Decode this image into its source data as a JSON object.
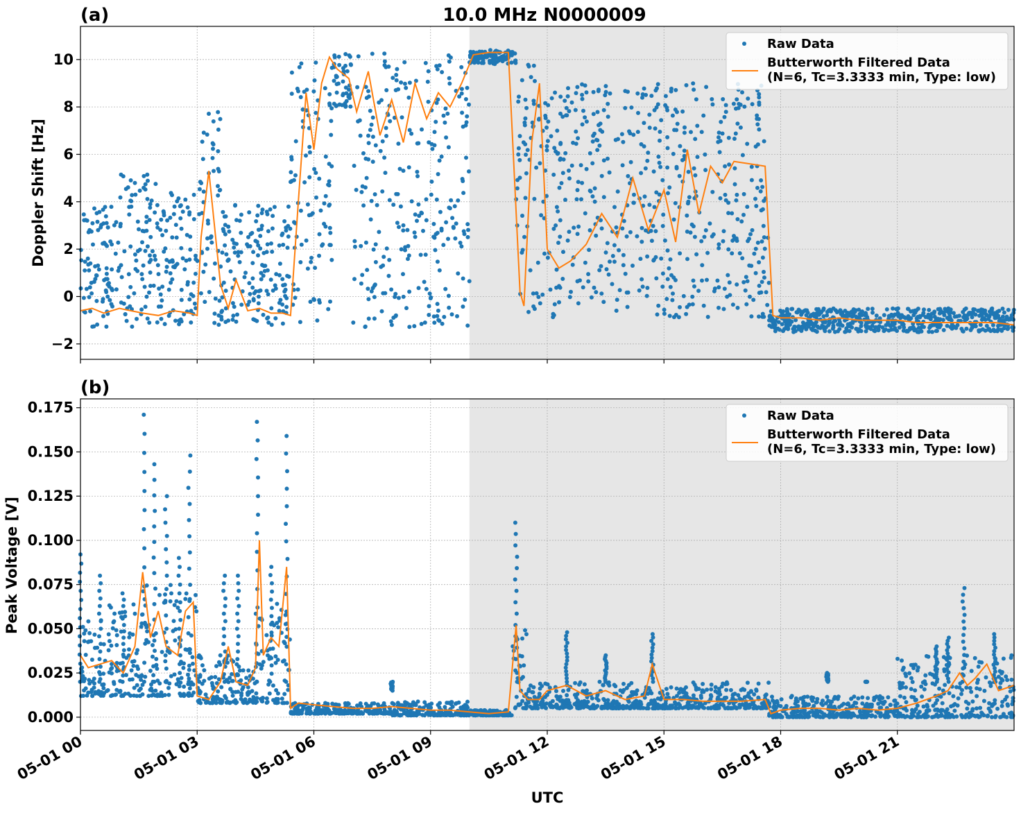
{
  "title": "10.0 MHz N0000009",
  "xlabel": "UTC",
  "x_ticks": [
    "05-01 00",
    "05-01 03",
    "05-01 06",
    "05-01 09",
    "05-01 12",
    "05-01 15",
    "05-01 18",
    "05-01 21"
  ],
  "night_shade": {
    "start_hour": 10.0,
    "end_hour": 24.0,
    "color": "#e6e6e6"
  },
  "colors": {
    "raw": "#1f77b4",
    "filtered": "#ff7f0e",
    "grid": "#b0b0b0"
  },
  "legend": {
    "raw_label": "Raw Data",
    "filt_line1": "Butterworth Filtered Data",
    "filt_line2": "(N=6, Tc=3.3333 min, Type: low)"
  },
  "chart_data": [
    {
      "type": "scatter",
      "panel_label": "(a)",
      "ylabel": "Doppler Shift [Hz]",
      "xlim_hours": [
        0,
        24
      ],
      "ylim": [
        -2.65,
        11.4
      ],
      "yticks": [
        -2,
        0,
        2,
        4,
        6,
        8,
        10
      ],
      "ytick_labels": [
        "−2",
        "0",
        "2",
        "4",
        "6",
        "8",
        "10"
      ],
      "legend_position": "top-right",
      "grid": true,
      "series": [
        {
          "name": "Raw Data",
          "kind": "scatter-envelope",
          "segments": [
            {
              "t": [
                0.0,
                1.0
              ],
              "lo": -1.3,
              "hi": 3.8
            },
            {
              "t": [
                1.0,
                2.0
              ],
              "lo": -1.3,
              "hi": 5.2
            },
            {
              "t": [
                2.0,
                3.0
              ],
              "lo": -1.2,
              "hi": 4.5
            },
            {
              "t": [
                3.0,
                3.6
              ],
              "lo": -1.3,
              "hi": 7.8
            },
            {
              "t": [
                3.6,
                5.4
              ],
              "lo": -1.2,
              "hi": 4.0
            },
            {
              "t": [
                5.4,
                6.5
              ],
              "lo": -1.1,
              "hi": 10.3
            },
            {
              "t": [
                6.5,
                7.0
              ],
              "lo": 8.0,
              "hi": 10.3
            },
            {
              "t": [
                7.0,
                10.0
              ],
              "lo": -1.3,
              "hi": 10.3
            },
            {
              "t": [
                10.0,
                11.2
              ],
              "lo": 9.8,
              "hi": 10.4
            },
            {
              "t": [
                11.2,
                11.8
              ],
              "lo": -0.8,
              "hi": 9.8
            },
            {
              "t": [
                11.8,
                17.7
              ],
              "lo": -0.9,
              "hi": 9.0
            },
            {
              "t": [
                17.7,
                24.0
              ],
              "lo": -1.5,
              "hi": -0.5
            }
          ]
        },
        {
          "name": "Butterworth Filtered Data (N=6, Tc=3.3333 min, Type: low)",
          "kind": "line",
          "x": [
            0,
            0.3,
            0.6,
            1.0,
            1.3,
            1.6,
            2.0,
            2.4,
            2.8,
            3.0,
            3.1,
            3.3,
            3.6,
            3.8,
            4.0,
            4.3,
            4.6,
            4.9,
            5.2,
            5.4,
            5.6,
            5.8,
            6.0,
            6.2,
            6.4,
            6.6,
            6.9,
            7.1,
            7.4,
            7.7,
            8.0,
            8.3,
            8.6,
            8.9,
            9.2,
            9.5,
            9.8,
            10.1,
            10.5,
            11.0,
            11.3,
            11.4,
            11.6,
            11.8,
            12.0,
            12.3,
            12.6,
            13.0,
            13.4,
            13.8,
            14.2,
            14.6,
            15.0,
            15.3,
            15.6,
            15.9,
            16.2,
            16.5,
            16.8,
            17.2,
            17.6,
            17.8,
            18.0,
            18.5,
            19.0,
            19.5,
            20.0,
            20.5,
            21.0,
            21.5,
            22.0,
            22.5,
            23.0,
            23.5,
            24.0
          ],
          "y": [
            -0.6,
            -0.5,
            -0.7,
            -0.5,
            -0.6,
            -0.7,
            -0.8,
            -0.6,
            -0.7,
            -0.8,
            2.5,
            5.3,
            0.5,
            -0.5,
            0.7,
            -0.6,
            -0.5,
            -0.7,
            -0.7,
            -0.8,
            4.0,
            8.6,
            6.2,
            9.0,
            10.1,
            9.6,
            9.2,
            7.8,
            9.5,
            6.8,
            8.3,
            6.5,
            9.0,
            7.5,
            8.6,
            8.0,
            9.0,
            10.2,
            10.3,
            10.3,
            0.2,
            -0.4,
            6.5,
            9.0,
            2.0,
            1.2,
            1.5,
            2.2,
            3.5,
            2.5,
            5.0,
            2.8,
            4.5,
            2.3,
            6.2,
            3.5,
            5.5,
            4.8,
            5.7,
            5.6,
            5.5,
            -0.8,
            -0.9,
            -0.9,
            -1.0,
            -0.9,
            -1.0,
            -1.0,
            -1.0,
            -1.1,
            -1.1,
            -1.1,
            -1.1,
            -1.1,
            -1.2
          ]
        }
      ]
    },
    {
      "type": "scatter",
      "panel_label": "(b)",
      "ylabel": "Peak Voltage [V]",
      "xlim_hours": [
        0,
        24
      ],
      "ylim": [
        -0.0075,
        0.18
      ],
      "yticks": [
        0.0,
        0.025,
        0.05,
        0.075,
        0.1,
        0.125,
        0.15,
        0.175
      ],
      "ytick_labels": [
        "0.000",
        "0.025",
        "0.050",
        "0.075",
        "0.100",
        "0.125",
        "0.150",
        "0.175"
      ],
      "legend_position": "top-right",
      "grid": true,
      "series": [
        {
          "name": "Raw Data",
          "kind": "scatter-envelope",
          "segments": [
            {
              "t": [
                0.0,
                0.5
              ],
              "lo": 0.012,
              "hi": 0.06
            },
            {
              "t": [
                0.5,
                1.5
              ],
              "lo": 0.012,
              "hi": 0.065
            },
            {
              "t": [
                1.5,
                3.0
              ],
              "lo": 0.012,
              "hi": 0.075
            },
            {
              "t": [
                3.0,
                4.5
              ],
              "lo": 0.008,
              "hi": 0.035
            },
            {
              "t": [
                4.5,
                5.4
              ],
              "lo": 0.008,
              "hi": 0.065
            },
            {
              "t": [
                5.4,
                8.0
              ],
              "lo": 0.002,
              "hi": 0.008
            },
            {
              "t": [
                8.0,
                10.0
              ],
              "lo": 0.001,
              "hi": 0.009
            },
            {
              "t": [
                10.0,
                11.1
              ],
              "lo": 0.001,
              "hi": 0.004
            },
            {
              "t": [
                11.1,
                11.5
              ],
              "lo": 0.005,
              "hi": 0.05
            },
            {
              "t": [
                11.5,
                17.7
              ],
              "lo": 0.005,
              "hi": 0.02
            },
            {
              "t": [
                17.7,
                21.0
              ],
              "lo": 0.0,
              "hi": 0.012
            },
            {
              "t": [
                21.0,
                24.0
              ],
              "lo": 0.0,
              "hi": 0.035
            }
          ],
          "spikes": [
            {
              "t": 0.0,
              "v": 0.092
            },
            {
              "t": 0.5,
              "v": 0.08
            },
            {
              "t": 1.1,
              "v": 0.07
            },
            {
              "t": 1.65,
              "v": 0.171
            },
            {
              "t": 1.9,
              "v": 0.143
            },
            {
              "t": 2.2,
              "v": 0.125
            },
            {
              "t": 2.55,
              "v": 0.09
            },
            {
              "t": 2.8,
              "v": 0.148
            },
            {
              "t": 3.7,
              "v": 0.08
            },
            {
              "t": 4.05,
              "v": 0.08
            },
            {
              "t": 4.55,
              "v": 0.167
            },
            {
              "t": 4.9,
              "v": 0.085
            },
            {
              "t": 5.3,
              "v": 0.159
            },
            {
              "t": 8.0,
              "v": 0.015
            },
            {
              "t": 11.2,
              "v": 0.11
            },
            {
              "t": 12.5,
              "v": 0.048
            },
            {
              "t": 13.5,
              "v": 0.035
            },
            {
              "t": 14.7,
              "v": 0.047
            },
            {
              "t": 19.2,
              "v": 0.025
            },
            {
              "t": 20.2,
              "v": 0.02
            },
            {
              "t": 22.0,
              "v": 0.04
            },
            {
              "t": 22.3,
              "v": 0.045
            },
            {
              "t": 22.7,
              "v": 0.073
            },
            {
              "t": 23.5,
              "v": 0.047
            }
          ]
        },
        {
          "name": "Butterworth Filtered Data (N=6, Tc=3.3333 min, Type: low)",
          "kind": "line",
          "x": [
            0,
            0.2,
            0.5,
            0.8,
            1.1,
            1.4,
            1.6,
            1.8,
            2.0,
            2.2,
            2.5,
            2.7,
            2.9,
            3.0,
            3.3,
            3.6,
            3.8,
            4.0,
            4.3,
            4.5,
            4.6,
            4.7,
            4.9,
            5.1,
            5.3,
            5.4,
            5.6,
            6.0,
            6.5,
            7.0,
            7.5,
            8.0,
            8.5,
            9.0,
            9.5,
            10.0,
            10.5,
            11.0,
            11.2,
            11.3,
            11.5,
            11.8,
            12.0,
            12.5,
            13.0,
            13.5,
            14.0,
            14.5,
            14.7,
            15.0,
            15.5,
            16.0,
            16.5,
            17.0,
            17.6,
            17.75,
            18.0,
            18.5,
            19.0,
            19.5,
            20.0,
            20.5,
            21.0,
            21.5,
            22.0,
            22.3,
            22.6,
            22.8,
            23.0,
            23.3,
            23.6,
            24.0
          ],
          "y": [
            0.035,
            0.028,
            0.03,
            0.032,
            0.025,
            0.04,
            0.082,
            0.045,
            0.06,
            0.04,
            0.035,
            0.06,
            0.065,
            0.012,
            0.01,
            0.02,
            0.04,
            0.02,
            0.018,
            0.028,
            0.1,
            0.035,
            0.045,
            0.04,
            0.085,
            0.005,
            0.008,
            0.007,
            0.006,
            0.005,
            0.005,
            0.006,
            0.005,
            0.004,
            0.004,
            0.003,
            0.002,
            0.003,
            0.052,
            0.015,
            0.01,
            0.01,
            0.015,
            0.018,
            0.012,
            0.015,
            0.01,
            0.012,
            0.03,
            0.01,
            0.01,
            0.009,
            0.009,
            0.009,
            0.01,
            0.002,
            0.004,
            0.005,
            0.005,
            0.004,
            0.005,
            0.004,
            0.005,
            0.008,
            0.012,
            0.015,
            0.025,
            0.018,
            0.022,
            0.03,
            0.015,
            0.018
          ]
        }
      ]
    }
  ]
}
